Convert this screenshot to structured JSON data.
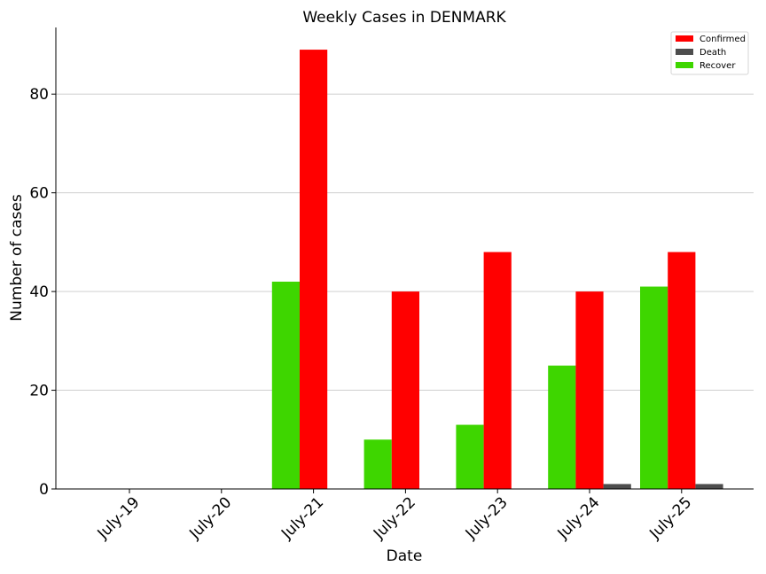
{
  "chart_data": {
    "type": "bar",
    "title": "Weekly Cases in DENMARK",
    "xlabel": "Date",
    "ylabel": "Number of cases",
    "categories": [
      "July-19",
      "July-20",
      "July-21",
      "July-22",
      "July-23",
      "July-24",
      "July-25"
    ],
    "series": [
      {
        "name": "Recover",
        "color": "#3ed600",
        "values": [
          0,
          0,
          42,
          10,
          13,
          25,
          41
        ]
      },
      {
        "name": "Confirmed",
        "color": "#ff0000",
        "values": [
          0,
          0,
          89,
          40,
          48,
          40,
          48
        ]
      },
      {
        "name": "Death",
        "color": "#4d4d4d",
        "values": [
          0,
          0,
          0,
          0,
          0,
          1,
          1
        ]
      }
    ],
    "legend_order": [
      "Confirmed",
      "Death",
      "Recover"
    ],
    "legend_position": "top-right",
    "ylim": [
      0,
      93.5
    ],
    "yticks": [
      0,
      20,
      40,
      60,
      80
    ],
    "grid": "horizontal"
  }
}
